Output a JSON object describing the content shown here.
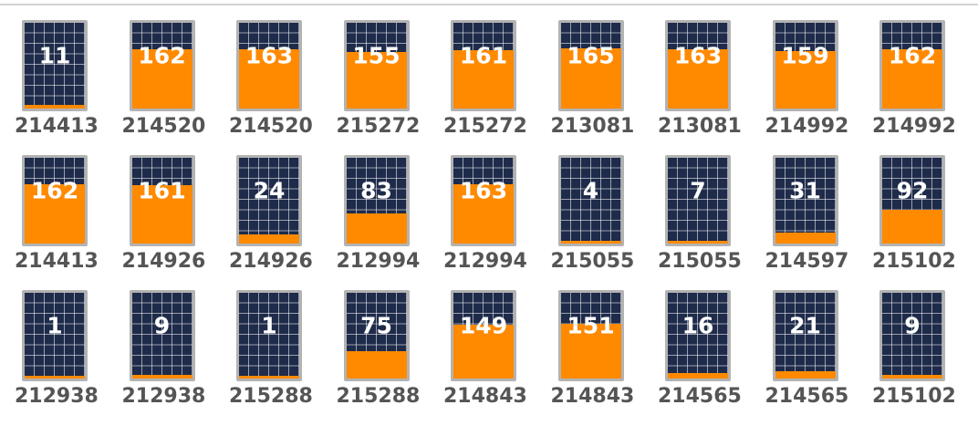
{
  "colors": {
    "panel_dark": "#1e2b4a",
    "fill_orange": "#ff8a00",
    "frame_gray": "#b3b3b3",
    "label_gray": "#555555"
  },
  "capacity": 165,
  "tiles": [
    {
      "value": "11",
      "id": "214413",
      "level": 11
    },
    {
      "value": "162",
      "id": "214520",
      "level": 162
    },
    {
      "value": "163",
      "id": "214520",
      "level": 163
    },
    {
      "value": "155",
      "id": "215272",
      "level": 155
    },
    {
      "value": "161",
      "id": "215272",
      "level": 161
    },
    {
      "value": "165",
      "id": "213081",
      "level": 165
    },
    {
      "value": "163",
      "id": "213081",
      "level": 163
    },
    {
      "value": "159",
      "id": "214992",
      "level": 159
    },
    {
      "value": "162",
      "id": "214992",
      "level": 162
    },
    {
      "value": "162",
      "id": "214413",
      "level": 162
    },
    {
      "value": "161",
      "id": "214926",
      "level": 161
    },
    {
      "value": "24",
      "id": "214926",
      "level": 24
    },
    {
      "value": "83",
      "id": "212994",
      "level": 83
    },
    {
      "value": "163",
      "id": "212994",
      "level": 163
    },
    {
      "value": "4",
      "id": "215055",
      "level": 4
    },
    {
      "value": "7",
      "id": "215055",
      "level": 7
    },
    {
      "value": "31",
      "id": "214597",
      "level": 31
    },
    {
      "value": "92",
      "id": "215102",
      "level": 92
    },
    {
      "value": "1",
      "id": "212938",
      "level": 1
    },
    {
      "value": "9",
      "id": "212938",
      "level": 9
    },
    {
      "value": "1",
      "id": "215288",
      "level": 1
    },
    {
      "value": "75",
      "id": "215288",
      "level": 75
    },
    {
      "value": "149",
      "id": "214843",
      "level": 149
    },
    {
      "value": "151",
      "id": "214843",
      "level": 151
    },
    {
      "value": "16",
      "id": "214565",
      "level": 16
    },
    {
      "value": "21",
      "id": "214565",
      "level": 21
    },
    {
      "value": "9",
      "id": "215102",
      "level": 9
    }
  ]
}
